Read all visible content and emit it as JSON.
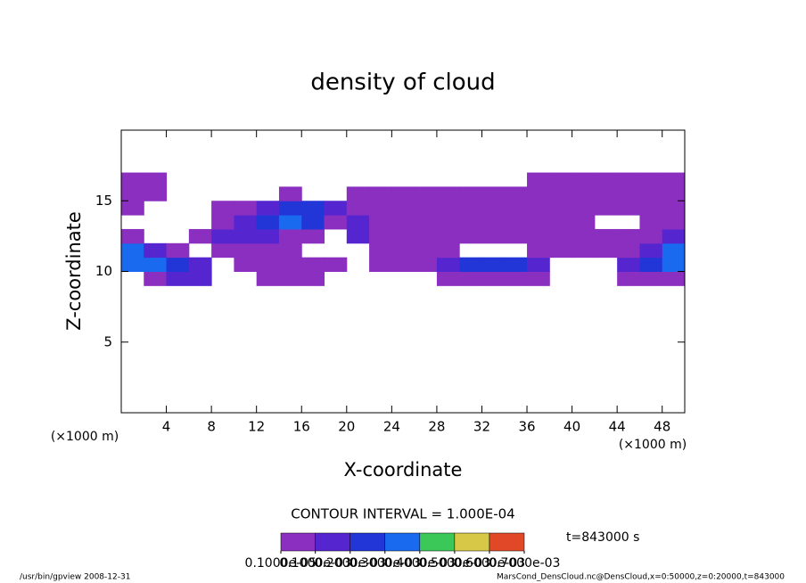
{
  "chart_data": {
    "type": "contour",
    "title": "density of cloud",
    "xlabel": "X-coordinate",
    "ylabel": "Z-coordinate",
    "x_unit_left": "(×1000 m)",
    "x_unit_right": "(×1000 m)",
    "contour_interval": "CONTOUR INTERVAL = 1.000E-04",
    "time_label": "t=843000 s",
    "footer_left": "/usr/bin/gpview  2008-12-31",
    "footer_right": "MarsCond_DensCloud.nc@DensCloud,x=0:50000,z=0:20000,t=843000",
    "xlim": [
      0,
      50
    ],
    "ylim": [
      0,
      20
    ],
    "xticks": [
      4,
      8,
      12,
      16,
      20,
      24,
      28,
      32,
      36,
      40,
      44,
      48
    ],
    "yticks": [
      5,
      10,
      15
    ],
    "x": [
      1,
      3,
      5,
      7,
      9,
      11,
      13,
      15,
      17,
      19,
      21,
      23,
      25,
      27,
      29,
      31,
      33,
      35,
      37,
      39,
      41,
      43,
      45,
      47,
      49
    ],
    "z": [
      9.5,
      10.5,
      11.5,
      12.5,
      13.5,
      14.5,
      15.5,
      16.5
    ],
    "values": [
      [
        null,
        0.0001,
        0.0002,
        0.0002,
        null,
        null,
        0.0001,
        0.0001,
        0.0001,
        null,
        null,
        null,
        null,
        null,
        0.0001,
        0.0001,
        0.0001,
        0.0001,
        0.0001,
        null,
        null,
        null,
        0.0001,
        0.0001,
        0.0001
      ],
      [
        0.0004,
        0.0004,
        0.0003,
        0.0002,
        null,
        0.0001,
        0.0001,
        0.0001,
        0.0001,
        0.0001,
        null,
        0.0001,
        0.0001,
        0.0001,
        0.0002,
        0.0003,
        0.0003,
        0.0003,
        0.0002,
        null,
        null,
        null,
        0.0002,
        0.0003,
        0.0004
      ],
      [
        0.0004,
        0.0002,
        0.0001,
        null,
        0.0001,
        0.0001,
        0.0001,
        0.0001,
        null,
        null,
        null,
        0.0001,
        0.0001,
        0.0001,
        0.0001,
        null,
        null,
        null,
        0.0001,
        0.0001,
        0.0001,
        0.0001,
        0.0001,
        0.0002,
        0.0004
      ],
      [
        0.0001,
        null,
        null,
        0.0001,
        0.0002,
        0.0002,
        0.0002,
        0.0001,
        0.0001,
        null,
        0.0002,
        0.0001,
        0.0001,
        0.0001,
        0.0001,
        0.0001,
        0.0001,
        0.0001,
        0.0001,
        0.0001,
        0.0001,
        0.0001,
        0.0001,
        0.0001,
        0.0002
      ],
      [
        null,
        null,
        null,
        null,
        0.0001,
        0.0002,
        0.0003,
        0.0004,
        0.0003,
        0.0001,
        0.0002,
        0.0001,
        0.0001,
        0.0001,
        0.0001,
        0.0001,
        0.0001,
        0.0001,
        0.0001,
        0.0001,
        0.0001,
        null,
        null,
        0.0001,
        0.0001
      ],
      [
        0.0001,
        null,
        null,
        null,
        0.0001,
        0.0001,
        0.0002,
        0.0003,
        0.0003,
        0.0002,
        0.0001,
        0.0001,
        0.0001,
        0.0001,
        0.0001,
        0.0001,
        0.0001,
        0.0001,
        0.0001,
        0.0001,
        0.0001,
        0.0001,
        0.0001,
        0.0001,
        0.0001
      ],
      [
        0.0001,
        0.0001,
        null,
        null,
        null,
        null,
        null,
        0.0001,
        null,
        null,
        0.0001,
        0.0001,
        0.0001,
        0.0001,
        0.0001,
        0.0001,
        0.0001,
        0.0001,
        0.0001,
        0.0001,
        0.0001,
        0.0001,
        0.0001,
        0.0001,
        0.0001
      ],
      [
        0.0001,
        0.0001,
        null,
        null,
        null,
        null,
        null,
        null,
        null,
        null,
        null,
        null,
        null,
        null,
        null,
        null,
        null,
        null,
        0.0001,
        0.0001,
        0.0001,
        0.0001,
        0.0001,
        0.0001,
        0.0001
      ]
    ],
    "levels": [
      1e-06,
      0.0001,
      0.0002,
      0.0003,
      0.0004,
      0.0005,
      0.0006,
      0.0007
    ],
    "level_labels": [
      "0.1000e-05",
      "0.1000e-03",
      "0.2000e-03",
      "0.3000e-03",
      "0.4000e-03",
      "0.5000e-03",
      "0.6000e-03",
      "0.7000e-03"
    ],
    "colors": [
      "#8a2fc0",
      "#5526d0",
      "#2236d8",
      "#1a6af0",
      "#3cc858",
      "#d8c848",
      "#e04828"
    ]
  }
}
